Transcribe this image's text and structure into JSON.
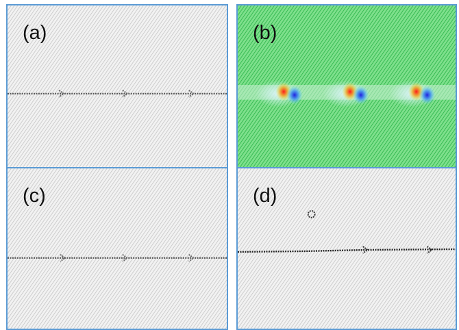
{
  "panels": [
    {
      "id": "a",
      "label": "(a)",
      "style": "grey-lattice",
      "dislocations": 3
    },
    {
      "id": "b",
      "label": "(b)",
      "style": "green-strain-field",
      "dislocations": 3
    },
    {
      "id": "c",
      "label": "(c)",
      "style": "grey-lattice",
      "dislocations": 3
    },
    {
      "id": "d",
      "label": "(d)",
      "style": "grey-lattice-with-defect",
      "dislocations": 2
    }
  ],
  "colors": {
    "panel_border": "#5b9bd5",
    "lattice_grey": "#c8c8c8",
    "defect_line": "#555555",
    "strain_green": "#3cc85a",
    "strain_red": "#e02020",
    "strain_blue": "#2030e0"
  }
}
